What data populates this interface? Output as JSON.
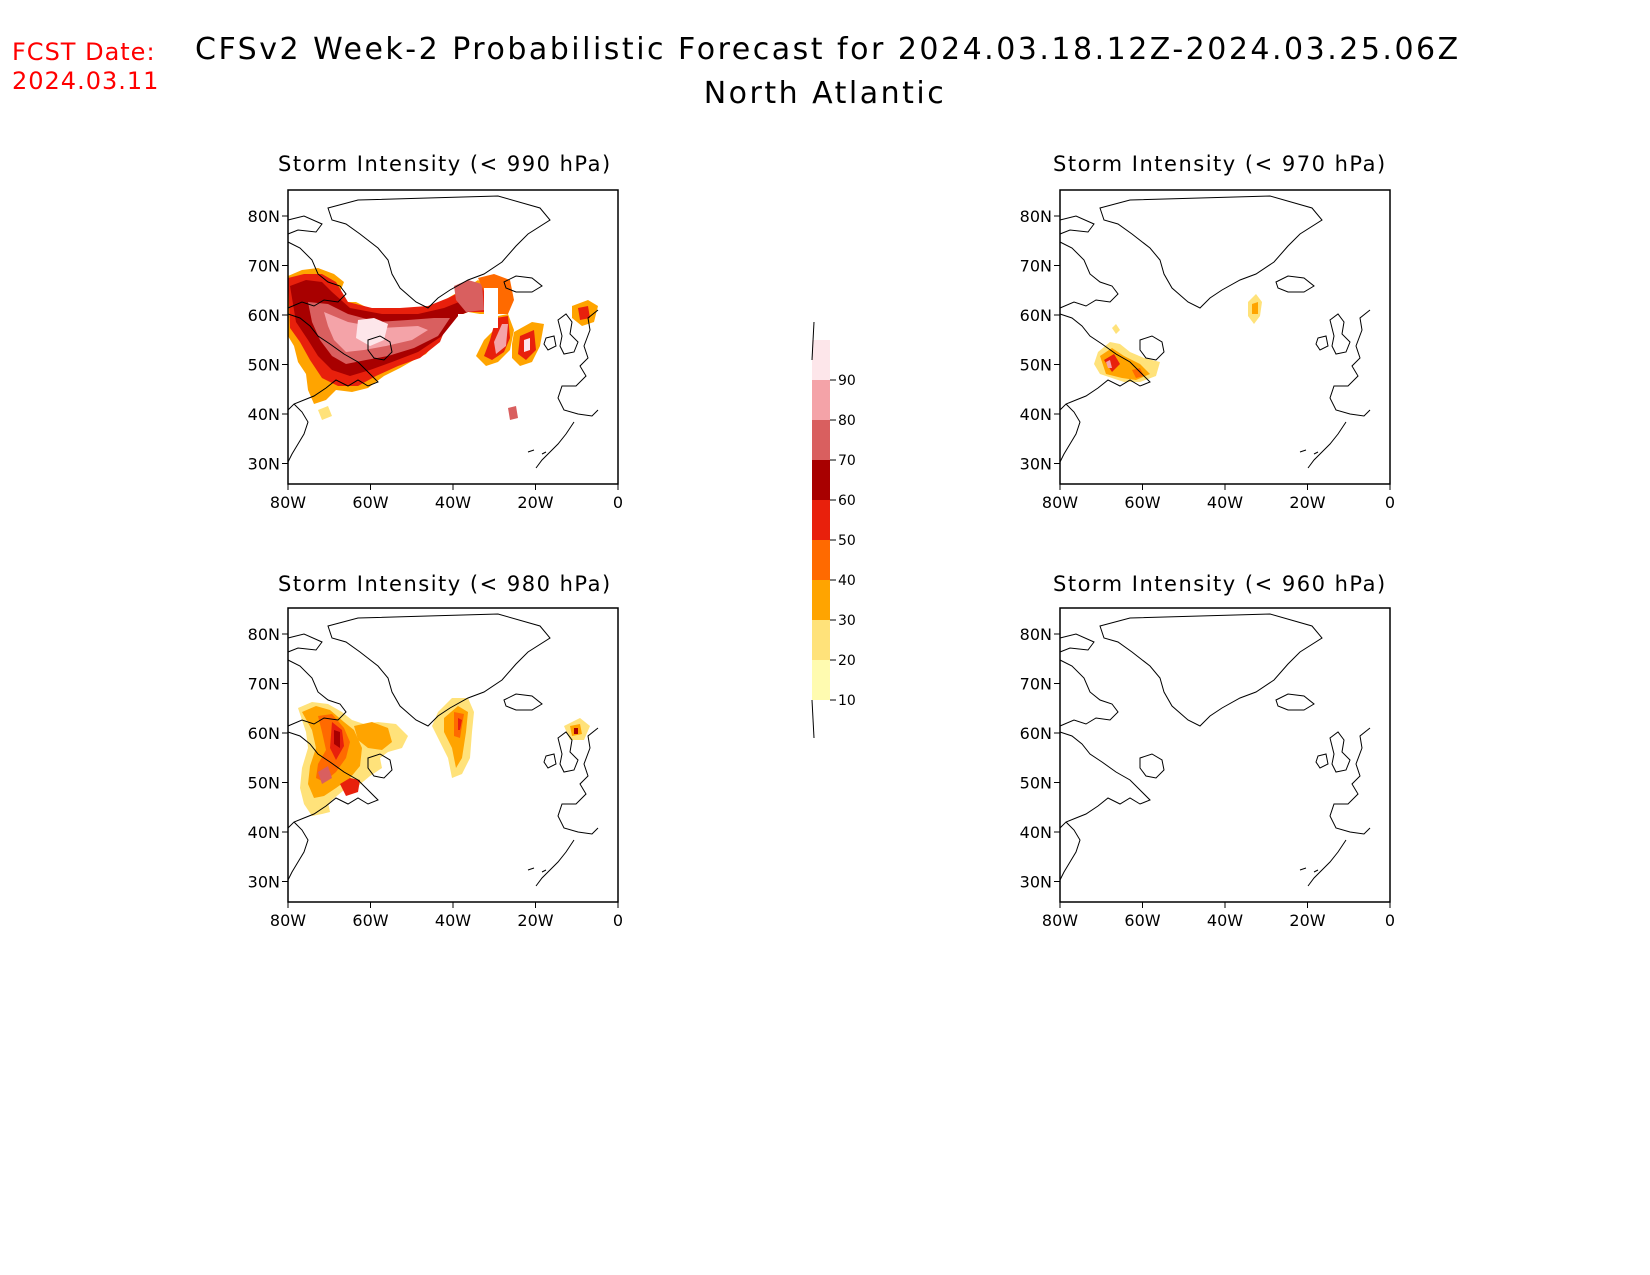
{
  "header": {
    "fcst_label": "FCST Date:",
    "fcst_date": "2024.03.11",
    "title": "CFSv2 Week-2 Probabilistic Forecast for 2024.03.18.12Z-2024.03.25.06Z",
    "subtitle": "North Atlantic"
  },
  "panels": [
    {
      "id": "p990",
      "title": "Storm Intensity (< 990 hPa)"
    },
    {
      "id": "p970",
      "title": "Storm Intensity (< 970 hPa)"
    },
    {
      "id": "p980",
      "title": "Storm Intensity (< 980 hPa)"
    },
    {
      "id": "p960",
      "title": "Storm Intensity (< 960 hPa)"
    }
  ],
  "axes": {
    "lat_labels": [
      "80N",
      "70N",
      "60N",
      "50N",
      "40N",
      "30N"
    ],
    "lon_labels": [
      "80W",
      "60W",
      "40W",
      "20W",
      "0"
    ]
  },
  "colorbar": {
    "levels": [
      "10",
      "20",
      "30",
      "40",
      "50",
      "60",
      "70",
      "80",
      "90"
    ],
    "colors": [
      "#fffbb0",
      "#ffe27a",
      "#ffa400",
      "#ff6a00",
      "#e8200c",
      "#a80000",
      "#d95f5f",
      "#f4a3a8",
      "#fde6ea"
    ]
  }
}
